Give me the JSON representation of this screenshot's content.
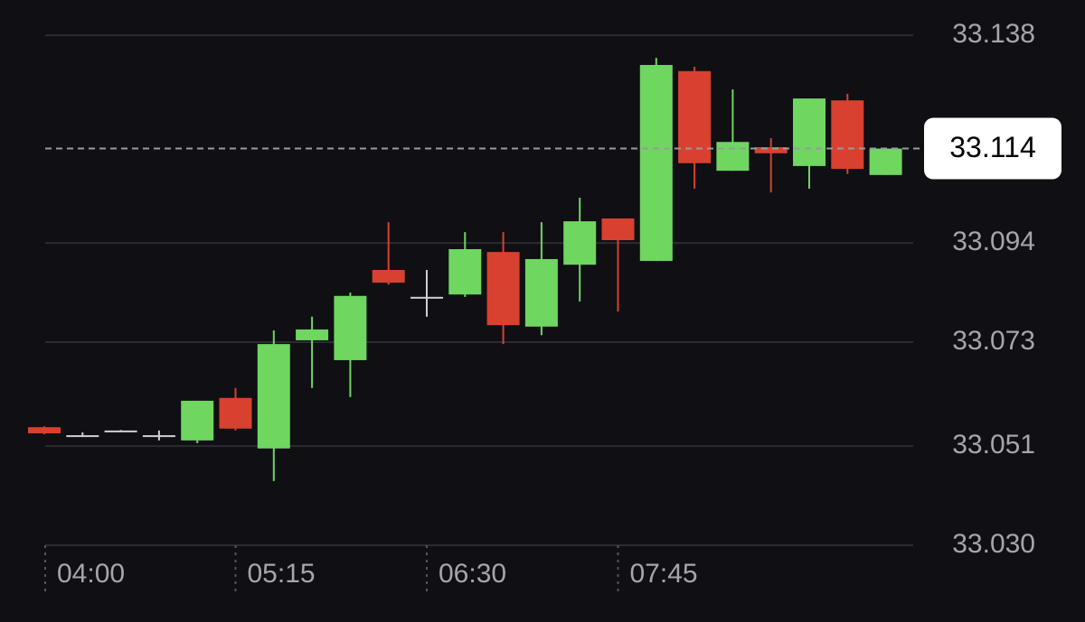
{
  "chart_data": {
    "type": "candlestick",
    "categories": [
      "04:00",
      null,
      null,
      null,
      null,
      "05:15",
      null,
      null,
      null,
      null,
      "06:30",
      null,
      null,
      null,
      null,
      "07:45",
      null,
      null,
      null,
      null,
      null,
      null,
      null
    ],
    "series": {
      "open": [
        33.055,
        33.0533,
        33.0543,
        33.0533,
        33.0522,
        33.0612,
        33.0505,
        33.0734,
        33.0692,
        33.0883,
        33.0826,
        33.0831,
        33.0921,
        33.0763,
        33.0894,
        33.0992,
        33.0902,
        33.1304,
        33.1093,
        33.1143,
        33.1103,
        33.1242,
        33.1084
      ],
      "high": [
        33.0552,
        33.0539,
        33.0544,
        33.0543,
        33.0606,
        33.0633,
        33.0755,
        33.0784,
        33.0835,
        33.0984,
        33.0883,
        33.0963,
        33.0963,
        33.0984,
        33.1036,
        33.0992,
        33.1332,
        33.1313,
        33.1265,
        33.1162,
        33.1246,
        33.1256,
        33.114
      ],
      "low": [
        33.0535,
        33.053,
        33.0542,
        33.0522,
        33.0516,
        33.0543,
        33.0436,
        33.0633,
        33.0614,
        33.0852,
        33.0784,
        33.0826,
        33.0726,
        33.0745,
        33.0816,
        33.0795,
        33.0902,
        33.1055,
        33.1093,
        33.1047,
        33.1055,
        33.1086,
        33.1084
      ],
      "close": [
        33.0537,
        33.0533,
        33.0543,
        33.0533,
        33.0606,
        33.0547,
        33.0726,
        33.0757,
        33.0828,
        33.0856,
        33.0826,
        33.0927,
        33.0766,
        33.0906,
        33.0986,
        33.0946,
        33.1317,
        33.1109,
        33.1154,
        33.113,
        33.1246,
        33.1097,
        33.114
      ]
    },
    "up_color": "#6fd660",
    "down_color": "#d8412f",
    "neutral_color": "#d0d0d4",
    "ylim": [
      33.03,
      33.138
    ],
    "yticks": [
      {
        "value": 33.03,
        "label": "33.030"
      },
      33.051,
      33.073,
      33.094,
      33.138
    ],
    "current_price": 33.114,
    "grid": true
  }
}
